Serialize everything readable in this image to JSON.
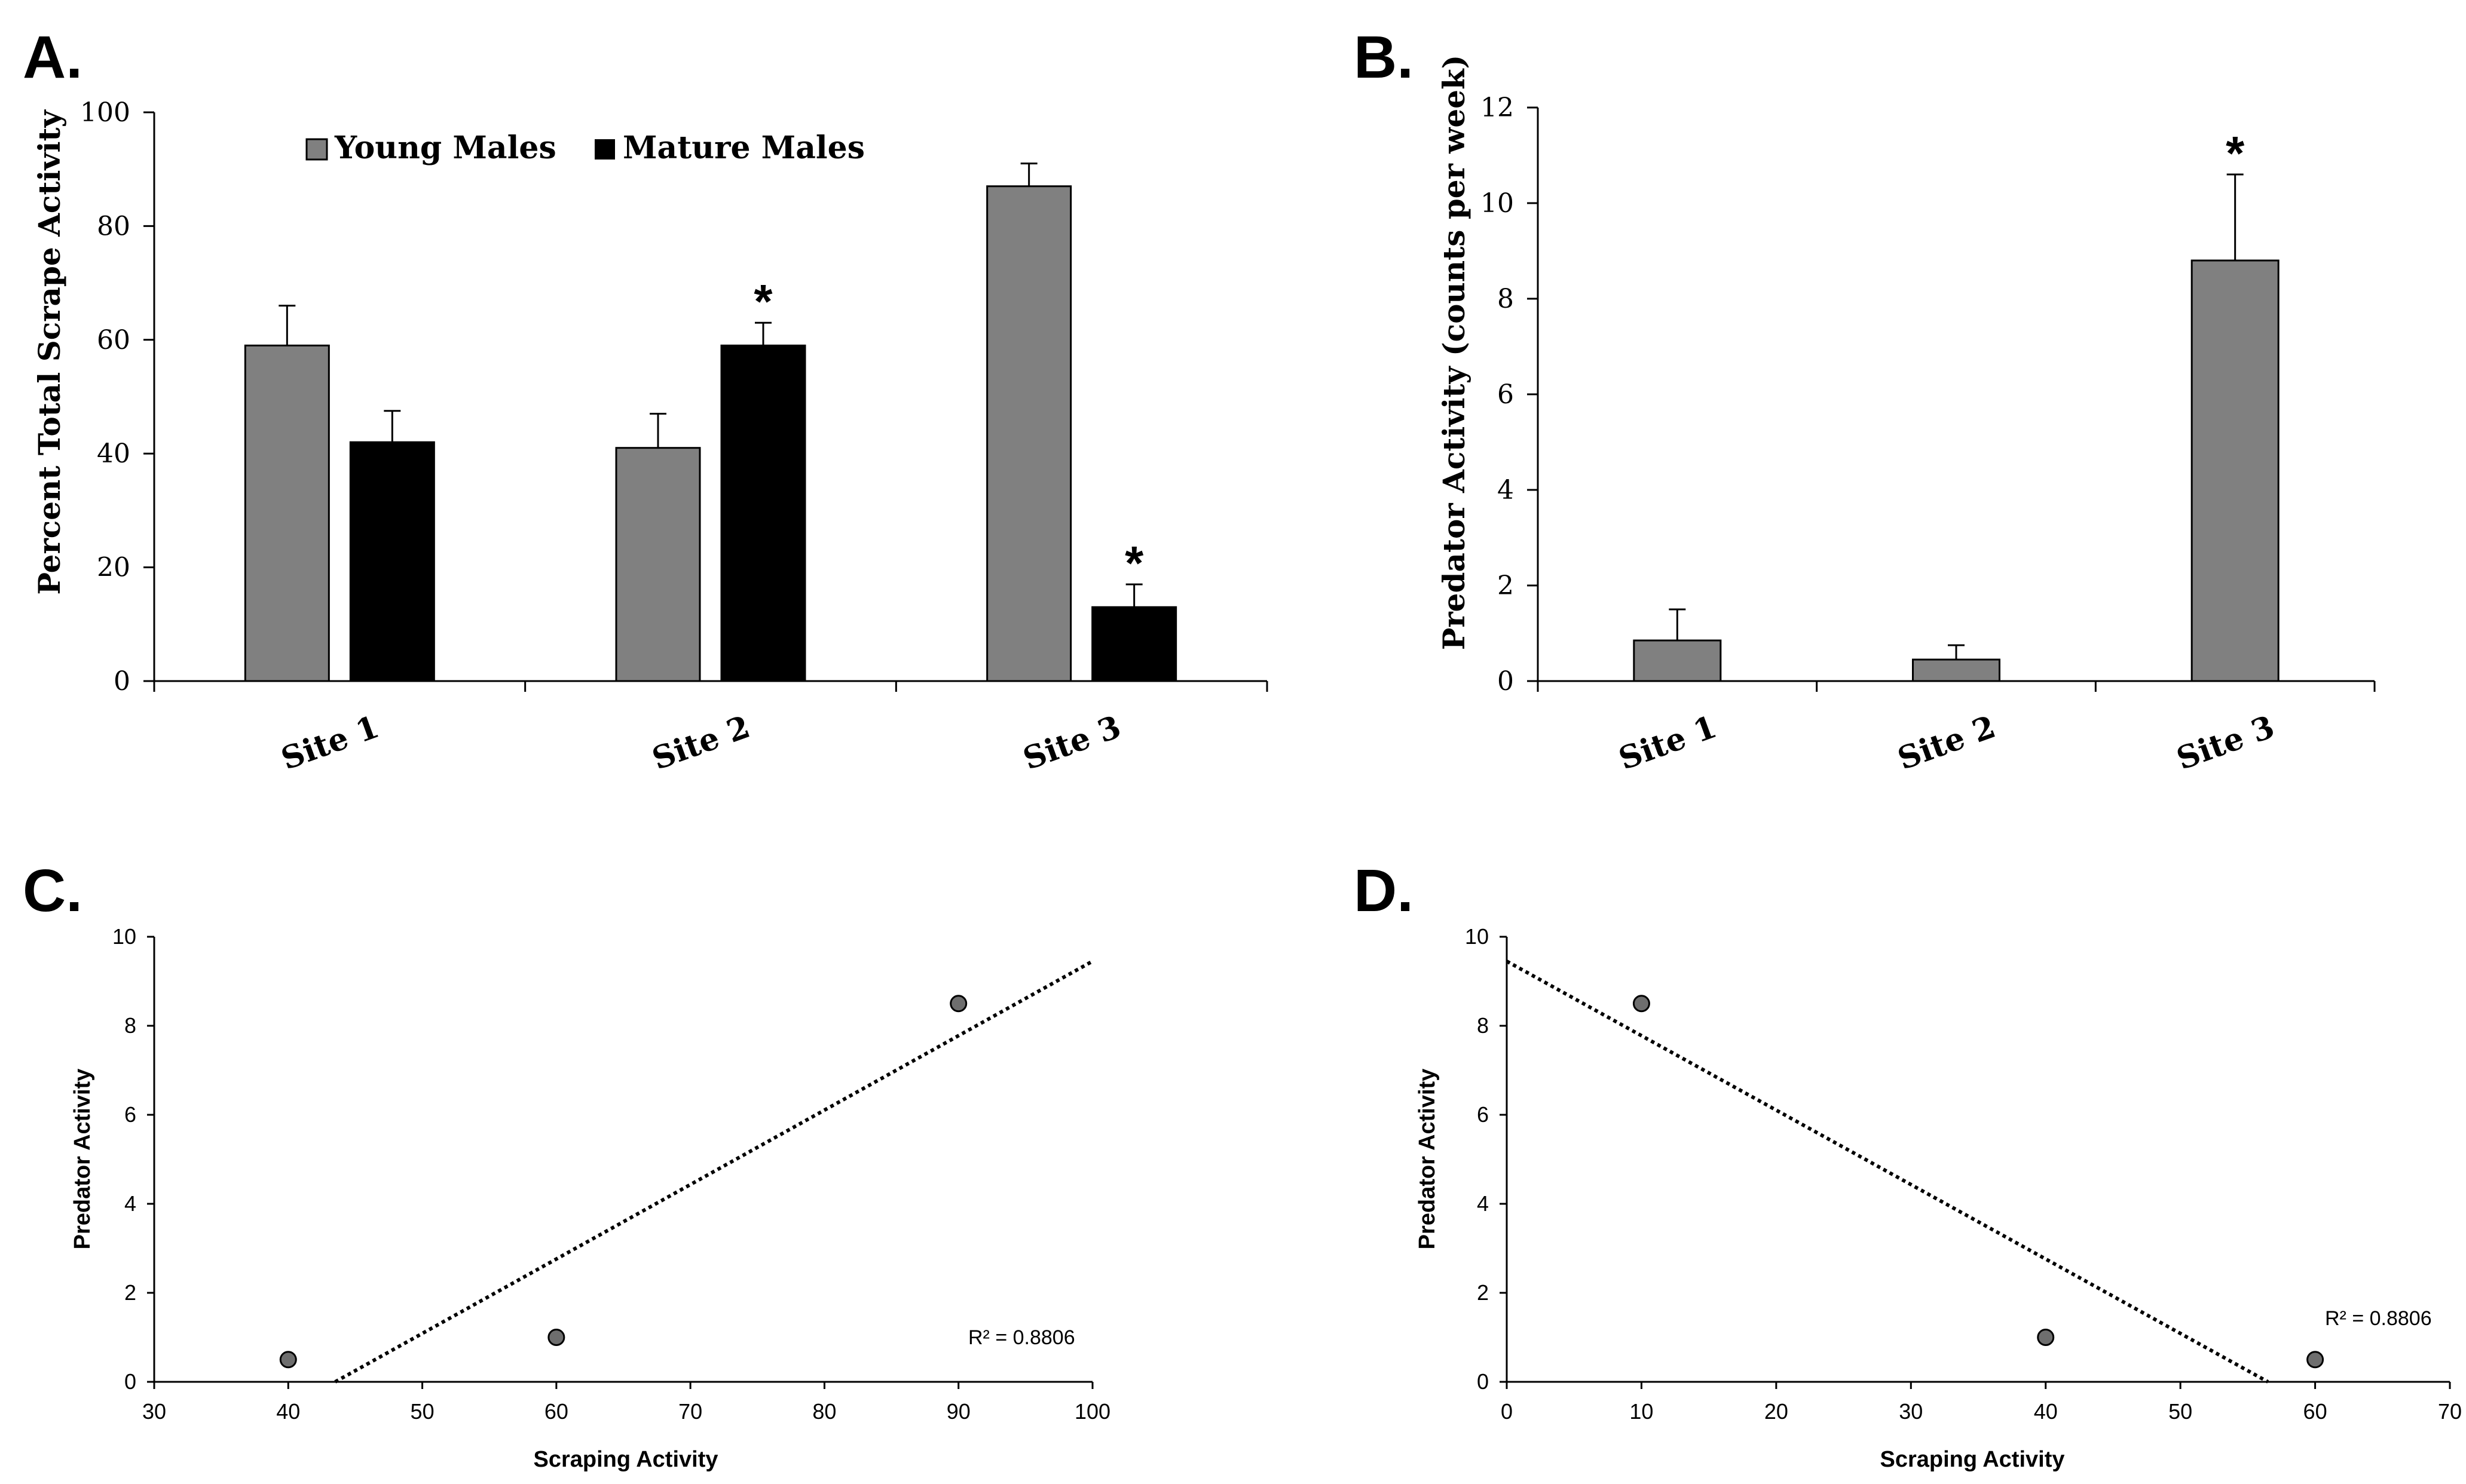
{
  "figure": {
    "panels": [
      "A.",
      "B.",
      "C.",
      "D."
    ]
  },
  "colors": {
    "young": "#808080",
    "mature": "#000000",
    "point": "#6e6e6e"
  },
  "chart_data": [
    {
      "id": "A",
      "type": "bar",
      "categories": [
        "Site 1",
        "Site 2",
        "Site 3"
      ],
      "series": [
        {
          "name": "Young Males",
          "values": [
            59,
            41,
            87
          ],
          "errors": [
            7,
            6,
            4
          ],
          "color": "#808080",
          "stars": [
            false,
            false,
            false
          ]
        },
        {
          "name": "Mature Males",
          "values": [
            42,
            59,
            13
          ],
          "errors": [
            5.5,
            4,
            4
          ],
          "color": "#000000",
          "stars": [
            false,
            true,
            true
          ]
        }
      ],
      "ylabel": "Percent Total Scrape Activity",
      "xlabel": "",
      "ylim": [
        0,
        100
      ],
      "yticks": [
        0,
        20,
        40,
        60,
        80,
        100
      ],
      "star": "*",
      "legend": "top-left"
    },
    {
      "id": "B",
      "type": "bar",
      "categories": [
        "Site 1",
        "Site 2",
        "Site 3"
      ],
      "series": [
        {
          "name": "Predator Activity",
          "values": [
            0.85,
            0.45,
            8.8
          ],
          "errors": [
            0.65,
            0.3,
            1.8
          ],
          "color": "#808080",
          "stars": [
            false,
            false,
            true
          ]
        }
      ],
      "ylabel": "Predator Activity (counts per week)",
      "xlabel": "",
      "ylim": [
        0,
        12
      ],
      "yticks": [
        0,
        2,
        4,
        6,
        8,
        10,
        12
      ],
      "star": "*"
    },
    {
      "id": "C",
      "type": "scatter",
      "points": [
        {
          "x": 40,
          "y": 0.5
        },
        {
          "x": 60,
          "y": 1
        },
        {
          "x": 90,
          "y": 8.5
        }
      ],
      "trendline": {
        "x0": 43.5,
        "y0": 0,
        "x1": 100,
        "y1": 9.45
      },
      "xlabel": "Scraping Activity",
      "ylabel": "Predator Activity",
      "xlim": [
        30,
        100
      ],
      "ylim": [
        0,
        10
      ],
      "xticks": [
        30,
        40,
        50,
        60,
        70,
        80,
        90,
        100
      ],
      "yticks": [
        0,
        2,
        4,
        6,
        8,
        10
      ],
      "r2_label": "R² = 0.8806"
    },
    {
      "id": "D",
      "type": "scatter",
      "points": [
        {
          "x": 10,
          "y": 8.5
        },
        {
          "x": 40,
          "y": 1
        },
        {
          "x": 60,
          "y": 0.5
        }
      ],
      "trendline": {
        "x0": 0,
        "y0": 9.45,
        "x1": 56.5,
        "y1": 0
      },
      "xlabel": "Scraping Activity",
      "ylabel": "Predator Activity",
      "xlim": [
        0,
        70
      ],
      "ylim": [
        0,
        10
      ],
      "xticks": [
        0,
        10,
        20,
        30,
        40,
        50,
        60,
        70
      ],
      "yticks": [
        0,
        2,
        4,
        6,
        8,
        10
      ],
      "r2_label": "R² = 0.8806"
    }
  ]
}
